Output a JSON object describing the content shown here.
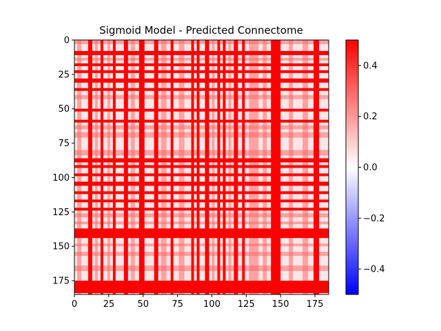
{
  "chart_data": {
    "type": "heatmap",
    "title": "Sigmoid Model - Predicted Connectome",
    "xlabel": "",
    "ylabel": "",
    "size": 185,
    "xlim": [
      0,
      185
    ],
    "ylim": [
      185,
      0
    ],
    "xticks": [
      0,
      25,
      50,
      75,
      100,
      125,
      150,
      175
    ],
    "yticks": [
      0,
      25,
      50,
      75,
      100,
      125,
      150,
      175
    ],
    "colormap": "bwr",
    "colors": {
      "low": "#0000ff",
      "mid": "#ffffff",
      "high": "#ff0000"
    },
    "vmin": -0.5,
    "vmax": 0.5,
    "colorbar_ticks": [
      -0.4,
      -0.2,
      0.0,
      0.2,
      0.4
    ],
    "strong_bands": [
      [
        8,
        11
      ],
      [
        17,
        19
      ],
      [
        22,
        24
      ],
      [
        28,
        31
      ],
      [
        35,
        37
      ],
      [
        50,
        52
      ],
      [
        58,
        60
      ],
      [
        86,
        89
      ],
      [
        91,
        93
      ],
      [
        97,
        99
      ],
      [
        103,
        106
      ],
      [
        110,
        112
      ],
      [
        116,
        118
      ],
      [
        122,
        124
      ],
      [
        137,
        144
      ],
      [
        175,
        184
      ]
    ],
    "medium_bands": [
      [
        0,
        3
      ],
      [
        13,
        15
      ],
      [
        40,
        43
      ],
      [
        62,
        65
      ],
      [
        67,
        71
      ],
      [
        80,
        84
      ],
      [
        126,
        129
      ],
      [
        132,
        134
      ],
      [
        148,
        150
      ],
      [
        154,
        157
      ],
      [
        164,
        168
      ]
    ],
    "col_strong": [
      [
        10,
        13
      ],
      [
        19,
        21
      ],
      [
        28,
        30
      ],
      [
        36,
        39
      ],
      [
        47,
        51
      ],
      [
        58,
        61
      ],
      [
        70,
        72
      ],
      [
        85,
        87
      ],
      [
        89,
        91
      ],
      [
        95,
        98
      ],
      [
        104,
        106
      ],
      [
        108,
        110
      ],
      [
        116,
        119
      ],
      [
        122,
        124
      ],
      [
        143,
        150
      ],
      [
        174,
        178
      ]
    ],
    "col_medium": [
      [
        2,
        5
      ],
      [
        15,
        17
      ],
      [
        24,
        26
      ],
      [
        41,
        44
      ],
      [
        63,
        67
      ],
      [
        76,
        80
      ],
      [
        100,
        102
      ],
      [
        112,
        114
      ],
      [
        127,
        134
      ],
      [
        137,
        140
      ],
      [
        156,
        159
      ],
      [
        166,
        170
      ]
    ]
  }
}
